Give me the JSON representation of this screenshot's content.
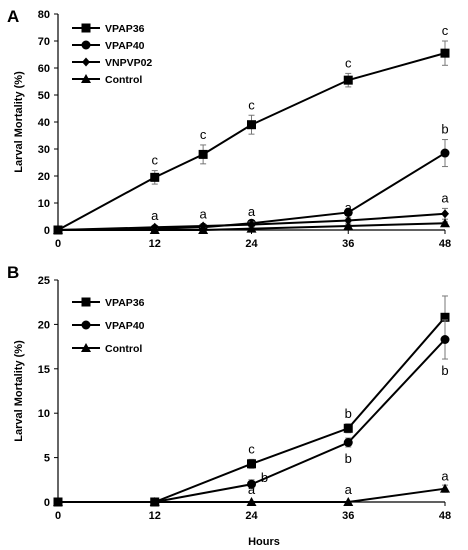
{
  "chart_data": [
    {
      "type": "line",
      "panel": "A",
      "x": [
        0,
        12,
        18,
        24,
        36,
        48
      ],
      "xticks": [
        0,
        12,
        24,
        36,
        48
      ],
      "xlim": [
        0,
        48
      ],
      "ylim": [
        0,
        80
      ],
      "yticks": [
        0,
        10,
        20,
        30,
        40,
        50,
        60,
        70,
        80
      ],
      "xlabel": "",
      "ylabel": "Larval  Mortality  (%)",
      "legend_position": "top-left",
      "series": [
        {
          "name": "VPAP36",
          "marker": "square",
          "values": [
            0,
            19.5,
            28,
            39,
            55.5,
            65.5
          ],
          "errors": [
            0,
            2.5,
            3.5,
            3.5,
            2.5,
            4.5
          ],
          "labels": [
            "",
            "c",
            "c",
            "c",
            "c",
            "c"
          ]
        },
        {
          "name": "VPAP40",
          "marker": "circle",
          "values": [
            0,
            0.5,
            1,
            2.5,
            6.5,
            28.5
          ],
          "errors": [
            0,
            0.5,
            0.5,
            1,
            1,
            5
          ],
          "labels": [
            "",
            "",
            "",
            "",
            "",
            "b"
          ]
        },
        {
          "name": "VNPVP02",
          "marker": "diamond",
          "values": [
            0,
            1,
            1.5,
            2,
            3.5,
            6
          ],
          "errors": [
            0,
            0.5,
            0.5,
            1,
            1,
            2
          ],
          "labels": [
            "",
            "a",
            "a",
            "a",
            "a",
            "a"
          ]
        },
        {
          "name": "Control",
          "marker": "triangle",
          "values": [
            0,
            0,
            0,
            0.5,
            1.5,
            2.5
          ],
          "errors": [
            0,
            0,
            0,
            0.5,
            0.5,
            0.5
          ],
          "labels": [
            "",
            "",
            "",
            "",
            "",
            ""
          ]
        }
      ]
    },
    {
      "type": "line",
      "panel": "B",
      "x": [
        0,
        12,
        24,
        36,
        48
      ],
      "xticks": [
        0,
        12,
        24,
        36,
        48
      ],
      "xlim": [
        0,
        48
      ],
      "ylim": [
        0,
        25
      ],
      "yticks": [
        0,
        5,
        10,
        15,
        20,
        25
      ],
      "xlabel": "Hours",
      "ylabel": "Larval  Mortality  (%)",
      "legend_position": "top-left",
      "series": [
        {
          "name": "VPAP36",
          "marker": "square",
          "values": [
            0,
            0,
            4.3,
            8.3,
            20.8
          ],
          "errors": [
            0,
            0,
            0.5,
            0.5,
            2.4
          ],
          "labels": [
            "",
            "",
            "c",
            "b",
            ""
          ]
        },
        {
          "name": "VPAP40",
          "marker": "circle",
          "values": [
            0,
            0,
            2,
            6.7,
            18.3
          ],
          "errors": [
            0,
            0,
            0.5,
            0.5,
            2.2
          ],
          "labels": [
            "",
            "",
            "b",
            "b",
            "b"
          ]
        },
        {
          "name": "Control",
          "marker": "triangle",
          "values": [
            0,
            0,
            0,
            0,
            1.5
          ],
          "errors": [
            0,
            0,
            0,
            0,
            0.4
          ],
          "labels": [
            "",
            "",
            "a",
            "a",
            "a"
          ]
        }
      ]
    }
  ]
}
